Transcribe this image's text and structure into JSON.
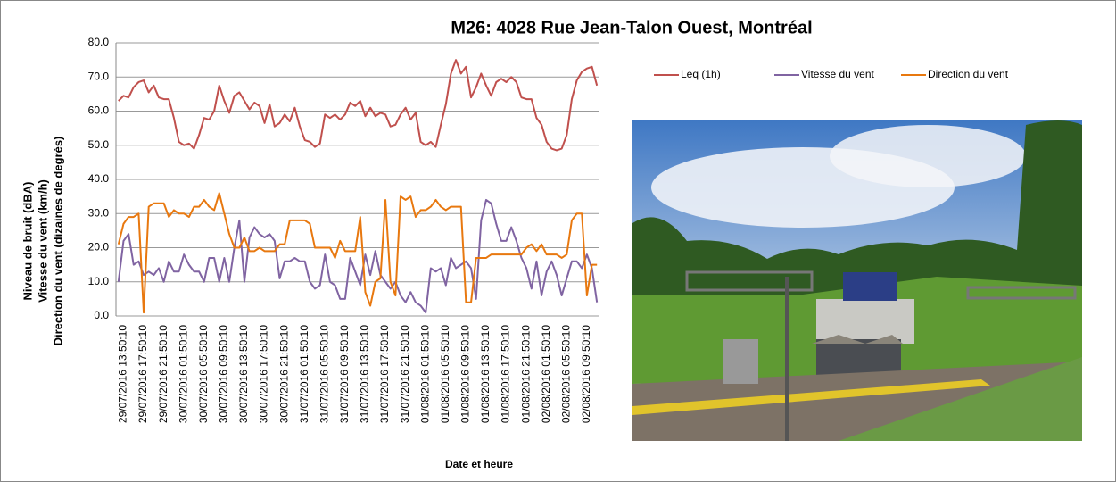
{
  "chart_data": {
    "type": "line",
    "title": "M26: 4028 Rue Jean-Talon Ouest, Montréal",
    "x_label": "Date et heure",
    "y_label": [
      "Niveau de bruit (dBA)",
      "Vitesse du vent (km/h)",
      "Direction du vent (dizaines de degrés)"
    ],
    "categories": [
      null,
      "29/07/2016 13:50:10",
      null,
      null,
      null,
      "29/07/2016 17:50:10",
      null,
      null,
      null,
      "29/07/2016 21:50:10",
      null,
      null,
      null,
      "30/07/2016 01:50:10",
      null,
      null,
      null,
      "30/07/2016 05:50:10",
      null,
      null,
      null,
      "30/07/2016 09:50:10",
      null,
      null,
      null,
      "30/07/2016 13:50:10",
      null,
      null,
      null,
      "30/07/2016 17:50:10",
      null,
      null,
      null,
      "30/07/2016 21:50:10",
      null,
      null,
      null,
      "31/07/2016 01:50:10",
      null,
      null,
      null,
      "31/07/2016 05:50:10",
      null,
      null,
      null,
      "31/07/2016 09:50:10",
      null,
      null,
      null,
      "31/07/2016 13:50:10",
      null,
      null,
      null,
      "31/07/2016 17:50:10",
      null,
      null,
      null,
      "31/07/2016 21:50:10",
      null,
      null,
      null,
      "01/08/2016 01:50:10",
      null,
      null,
      null,
      "01/08/2016 05:50:10",
      null,
      null,
      null,
      "01/08/2016 09:50:10",
      null,
      null,
      null,
      "01/08/2016 13:50:10",
      null,
      null,
      null,
      "01/08/2016 17:50:10",
      null,
      null,
      null,
      "01/08/2016 21:50:10",
      null,
      null,
      null,
      "02/08/2016 01:50:10",
      null,
      null,
      null,
      "02/08/2016 05:50:10",
      null,
      null,
      null,
      "02/08/2016 09:50:10",
      null,
      null
    ],
    "series": [
      {
        "name": "Leq (1h)",
        "color": "#c0504d",
        "values": [
          63,
          64.5,
          64,
          67,
          68.5,
          69,
          65.5,
          67.5,
          64,
          63.5,
          63.5,
          58,
          51,
          50,
          50.5,
          49,
          53,
          58,
          57.5,
          60,
          67.5,
          63,
          59.5,
          64.5,
          65.5,
          63,
          60.5,
          62.5,
          61.5,
          56.5,
          62,
          55.5,
          56.5,
          59,
          57,
          61,
          55.5,
          51.5,
          51,
          49.5,
          50.5,
          59,
          58,
          59,
          57.5,
          59,
          62.5,
          61.5,
          63,
          58.5,
          61,
          58.5,
          59.5,
          59,
          55.5,
          56,
          59,
          61,
          57.5,
          59.5,
          51,
          50,
          51,
          49.5,
          56,
          62,
          71,
          75,
          71,
          73,
          64,
          67,
          71,
          67.5,
          64.5,
          68.5,
          69.5,
          68.5,
          70,
          68.5,
          64,
          63.5,
          63.5,
          58,
          56,
          51,
          49,
          48.5,
          49,
          53,
          63.5,
          69,
          71.5,
          72.5,
          73,
          67.5
        ]
      },
      {
        "name": "Vitesse du vent",
        "color": "#8064a2",
        "values": [
          10,
          22,
          24,
          15,
          16,
          12,
          13,
          12,
          14,
          10,
          16,
          13,
          13,
          18,
          15,
          13,
          13,
          10,
          17,
          17,
          10,
          17,
          10,
          20,
          28,
          10,
          23,
          26,
          24,
          23,
          24,
          22,
          11,
          16,
          16,
          17,
          16,
          16,
          10,
          8,
          9,
          18,
          10,
          9,
          5,
          5,
          17,
          13,
          9,
          18,
          12,
          19,
          12,
          10,
          8,
          10,
          6,
          4,
          7,
          4,
          3,
          1,
          14,
          13,
          14,
          9,
          17,
          14,
          15,
          16,
          14,
          5,
          28,
          34,
          33,
          27,
          22,
          22,
          26,
          22,
          17,
          14,
          8,
          16,
          6,
          13,
          16,
          12,
          6,
          11,
          16,
          16,
          14,
          18,
          14,
          4
        ]
      },
      {
        "name": "Direction du vent",
        "color": "#e8780f",
        "values": [
          21,
          27,
          29,
          29,
          30,
          1,
          32,
          33,
          33,
          33,
          29,
          31,
          30,
          30,
          29,
          32,
          32,
          34,
          32,
          31,
          36,
          30,
          24,
          20,
          20,
          23,
          19,
          19,
          20,
          19,
          19,
          19,
          21,
          21,
          28,
          28,
          28,
          28,
          27,
          20,
          20,
          20,
          20,
          17,
          22,
          19,
          19,
          19,
          29,
          7,
          3,
          10,
          11,
          34,
          10,
          6,
          35,
          34,
          35,
          29,
          31,
          31,
          32,
          34,
          32,
          31,
          32,
          32,
          32,
          4,
          4,
          17,
          17,
          17,
          18,
          18,
          18,
          18,
          18,
          18,
          18,
          20,
          21,
          19,
          21,
          18,
          18,
          18,
          17,
          18,
          28,
          30,
          30,
          6,
          15,
          15
        ]
      }
    ],
    "ylim": [
      0,
      80
    ],
    "yticks": [
      {
        "value": 0,
        "label": "0.0"
      },
      {
        "value": 10,
        "label": "10.0"
      },
      {
        "value": 20,
        "label": "20.0"
      },
      {
        "value": 30,
        "label": "30.0"
      },
      {
        "value": 40,
        "label": "40.0"
      },
      {
        "value": 50,
        "label": "50.0"
      },
      {
        "value": 60,
        "label": "60.0"
      },
      {
        "value": 70,
        "label": "70.0"
      },
      {
        "value": 80,
        "label": "80.0"
      }
    ],
    "grid": true,
    "legend": "top-right"
  }
}
